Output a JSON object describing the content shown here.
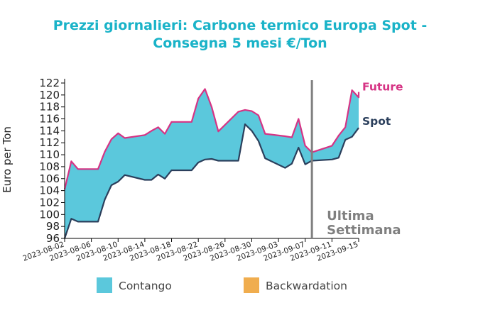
{
  "chart_data": {
    "type": "area",
    "title_lines": [
      "Prezzi giornalieri: Carbone termico Europa Spot -",
      "Consegna 5 mesi €/Ton"
    ],
    "ylabel": "Euro per Ton",
    "xlabel": "",
    "ylim": [
      96,
      122
    ],
    "yticks": [
      "96",
      "98",
      "100",
      "102",
      "104",
      "106",
      "108",
      "110",
      "112",
      "114",
      "116",
      "118",
      "120",
      "122"
    ],
    "xtick_labels": [
      "2023-08-02",
      "2023-08-06",
      "2023-08-10",
      "2023-08-14",
      "2023-08-18",
      "2023-08-22",
      "2023-08-26",
      "2023-08-30",
      "2023-09-03",
      "2023-09-07",
      "2023-09-11",
      "2023-09-15"
    ],
    "x_range": [
      "2023-08-02",
      "2023-09-15"
    ],
    "dates": [
      "2023-08-02",
      "2023-08-03",
      "2023-08-04",
      "2023-08-07",
      "2023-08-08",
      "2023-08-09",
      "2023-08-10",
      "2023-08-11",
      "2023-08-14",
      "2023-08-15",
      "2023-08-16",
      "2023-08-17",
      "2023-08-18",
      "2023-08-21",
      "2023-08-22",
      "2023-08-23",
      "2023-08-24",
      "2023-08-25",
      "2023-08-28",
      "2023-08-29",
      "2023-08-30",
      "2023-08-31",
      "2023-09-01",
      "2023-09-04",
      "2023-09-05",
      "2023-09-06",
      "2023-09-07",
      "2023-09-08",
      "2023-09-11",
      "2023-09-12",
      "2023-09-13",
      "2023-09-14",
      "2023-09-15"
    ],
    "series": [
      {
        "name": "Future",
        "color": "#d63384",
        "values": [
          104.2,
          108.9,
          107.6,
          107.6,
          110.5,
          112.6,
          113.6,
          112.8,
          113.3,
          114.0,
          114.6,
          113.5,
          115.5,
          115.5,
          119.4,
          121.0,
          118.0,
          113.9,
          117.2,
          117.5,
          117.3,
          116.6,
          113.5,
          113.1,
          112.9,
          116.0,
          111.5,
          110.4,
          111.5,
          113.2,
          114.6,
          120.8,
          119.6
        ],
        "extra": [
          120.5
        ]
      },
      {
        "name": "Spot",
        "color": "#2b3f5c",
        "values": [
          96.0,
          99.3,
          98.8,
          98.8,
          102.5,
          104.9,
          105.5,
          106.6,
          105.8,
          105.8,
          106.7,
          106.0,
          107.4,
          107.4,
          108.7,
          109.2,
          109.3,
          109.0,
          109.0,
          115.1,
          114.0,
          112.3,
          109.4,
          107.8,
          108.5,
          111.2,
          108.4,
          109.0,
          109.2,
          109.5,
          112.5,
          113.0,
          114.5
        ],
        "extra": []
      }
    ],
    "fill_legend": [
      {
        "label": "Contango",
        "color": "#5bc8dc"
      },
      {
        "label": "Backwardation",
        "color": "#f0ad4e"
      }
    ],
    "vline_date": "2023-09-08",
    "vline_label_lines": [
      "Ultima",
      "Settimana"
    ],
    "vline_color": "#808080",
    "grid": false,
    "legend_position": "bottom"
  }
}
